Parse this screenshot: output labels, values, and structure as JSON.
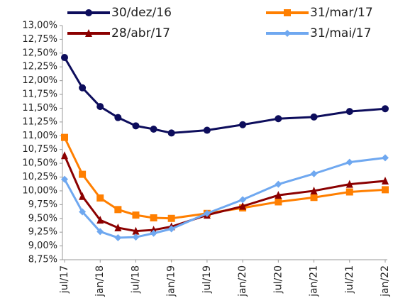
{
  "chart_data": {
    "type": "line",
    "x": [
      2017.5,
      2017.75,
      2018,
      2018.25,
      2018.5,
      2018.75,
      2019,
      2019.5,
      2020,
      2020.5,
      2021,
      2021.5,
      2022
    ],
    "xlim": [
      2017.5,
      2022
    ],
    "xticks": [
      {
        "value": 2017.5,
        "label": "jul/17"
      },
      {
        "value": 2018,
        "label": "jan/18"
      },
      {
        "value": 2018.5,
        "label": "jul/18"
      },
      {
        "value": 2019,
        "label": "jan/19"
      },
      {
        "value": 2019.5,
        "label": "jul/19"
      },
      {
        "value": 2020,
        "label": "jan/20"
      },
      {
        "value": 2020.5,
        "label": "jul/20"
      },
      {
        "value": 2021,
        "label": "jan/21"
      },
      {
        "value": 2021.5,
        "label": "jul/21"
      },
      {
        "value": 2022,
        "label": "jan/22"
      }
    ],
    "ylim": [
      8.75,
      13
    ],
    "yticks": [
      {
        "value": 8.75,
        "label": "8,75%"
      },
      {
        "value": 9,
        "label": "9,00%"
      },
      {
        "value": 9.25,
        "label": "9,25%"
      },
      {
        "value": 9.5,
        "label": "9,50%"
      },
      {
        "value": 9.75,
        "label": "9,75%"
      },
      {
        "value": 10,
        "label": "10,00%"
      },
      {
        "value": 10.25,
        "label": "10,25%"
      },
      {
        "value": 10.5,
        "label": "10,50%"
      },
      {
        "value": 10.75,
        "label": "10,75%"
      },
      {
        "value": 11,
        "label": "11,00%"
      },
      {
        "value": 11.25,
        "label": "11,25%"
      },
      {
        "value": 11.5,
        "label": "11,50%"
      },
      {
        "value": 11.75,
        "label": "11,75%"
      },
      {
        "value": 12,
        "label": "12,00%"
      },
      {
        "value": 12.25,
        "label": "12,25%"
      },
      {
        "value": 12.5,
        "label": "12,50%"
      },
      {
        "value": 12.75,
        "label": "12,75%"
      },
      {
        "value": 13,
        "label": "13,00%"
      }
    ],
    "series": [
      {
        "name": "30/dez/16",
        "color": "#0d0d5c",
        "marker": "circle",
        "values": [
          12.42,
          11.87,
          11.53,
          11.33,
          11.18,
          11.12,
          11.05,
          11.1,
          11.2,
          11.31,
          11.34,
          11.44,
          11.49
        ]
      },
      {
        "name": "31/mar/17",
        "color": "#ff7f00",
        "marker": "square",
        "values": [
          10.97,
          10.3,
          9.87,
          9.66,
          9.56,
          9.51,
          9.5,
          9.59,
          9.69,
          9.8,
          9.88,
          9.98,
          10.02
        ]
      },
      {
        "name": "28/abr/17",
        "color": "#8b0000",
        "marker": "triangle",
        "values": [
          10.64,
          9.9,
          9.47,
          9.33,
          9.27,
          9.29,
          9.35,
          9.56,
          9.72,
          9.92,
          10.0,
          10.12,
          10.18
        ]
      },
      {
        "name": "31/mai/17",
        "color": "#6fa8f0",
        "marker": "diamond",
        "values": [
          10.21,
          9.62,
          9.26,
          9.15,
          9.16,
          9.23,
          9.31,
          9.59,
          9.84,
          10.12,
          10.31,
          10.52,
          10.6
        ]
      }
    ]
  }
}
